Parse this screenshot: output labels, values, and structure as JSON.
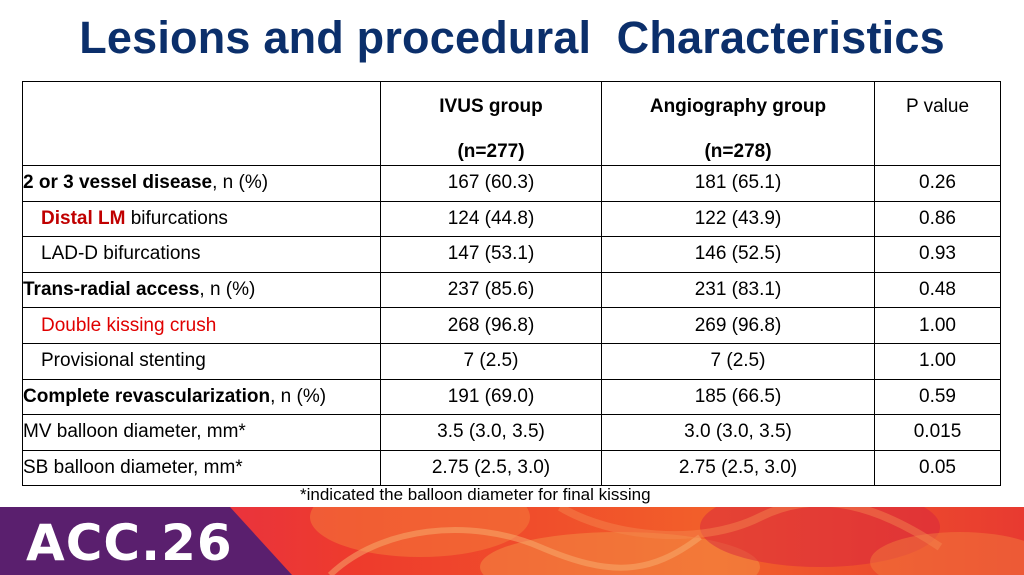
{
  "title": "Lesions and procedural  Characteristics",
  "table": {
    "headers": {
      "ivus": {
        "line1": "IVUS group",
        "line2": "(n=277)"
      },
      "angio": {
        "line1": "Angiography group",
        "line2": "(n=278)"
      },
      "p": "P value"
    },
    "rows": [
      {
        "bold": "2 or 3 vessel disease",
        "rest": ", n (%)",
        "ivus": "167 (60.3)",
        "angio": "181 (65.1)",
        "p": "0.26"
      },
      {
        "bold": "Distal LM",
        "rest": " bifurcations",
        "ivus": "124 (44.8)",
        "angio": "122 (43.9)",
        "p": "0.86"
      },
      {
        "text": "LAD-D bifurcations",
        "ivus": "147 (53.1)",
        "angio": "146 (52.5)",
        "p": "0.93"
      },
      {
        "bold": "Trans-radial access",
        "rest": ", n (%)",
        "ivus": "237 (85.6)",
        "angio": "231 (83.1)",
        "p": "0.48"
      },
      {
        "text": "Double kissing crush",
        "ivus": "268 (96.8)",
        "angio": "269 (96.8)",
        "p": "1.00"
      },
      {
        "text": "Provisional stenting",
        "ivus": "7 (2.5)",
        "angio": "7 (2.5)",
        "p": "1.00"
      },
      {
        "bold": "Complete revascularization",
        "rest": ", n (%)",
        "ivus": "191 (69.0)",
        "angio": "185 (66.5)",
        "p": "0.59"
      },
      {
        "text": "MV balloon diameter, mm*",
        "ivus": "3.5 (3.0, 3.5)",
        "angio": "3.0 (3.0, 3.5)",
        "p": "0.015"
      },
      {
        "text": "SB balloon diameter, mm*",
        "ivus": "2.75 (2.5, 3.0)",
        "angio": "2.75 (2.5, 3.0)",
        "p": "0.05"
      }
    ]
  },
  "footnote": "*indicated the balloon diameter for final kissing",
  "logo_text": "ACC.26",
  "colors": {
    "title": "#0b2f6b",
    "highlight_red": "#c00000",
    "footer_purple": "#5a1f6e",
    "footer_red": "#e8322a"
  }
}
